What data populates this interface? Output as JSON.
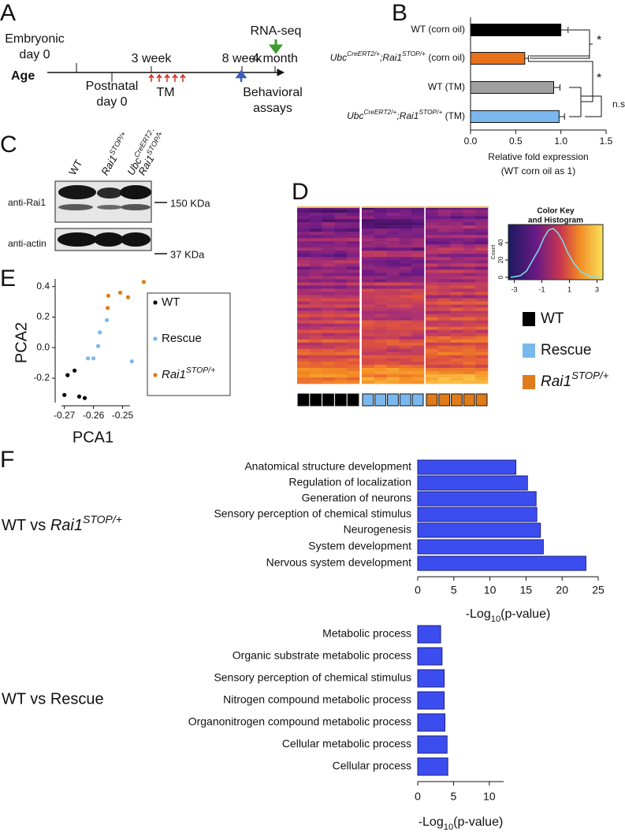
{
  "panel_labels": [
    "A",
    "B",
    "C",
    "D",
    "E",
    "F"
  ],
  "timeline": {
    "axis_label": "Age",
    "events": [
      [
        "Embryonic",
        "day 0"
      ],
      [
        "Postnatal",
        "day 0"
      ],
      [
        "3 week"
      ],
      [
        "8 week"
      ],
      [
        "4 month"
      ]
    ],
    "treatment": "TM",
    "assay": [
      "Behavioral",
      "assays"
    ],
    "sequencing": "RNA-seq"
  },
  "western": {
    "lanes": [
      [
        [
          {
            "text": "WT",
            "style": "normal"
          }
        ]
      ],
      [
        [
          {
            "text": "Rai1",
            "style": "italic"
          },
          {
            "text": "STOP/+",
            "style": "sup"
          }
        ]
      ],
      [
        [
          {
            "text": "Ubc",
            "style": "italic"
          },
          {
            "text": "CreERT2",
            "style": "sup"
          },
          {
            "text": ";",
            "style": "italic"
          }
        ],
        [
          {
            "text": "Rai1",
            "style": "italic"
          },
          {
            "text": "STOP/+",
            "style": "sup"
          }
        ]
      ]
    ],
    "blots": [
      "anti-Rai1",
      "anti-actin"
    ],
    "markers": [
      "150 KDa",
      "37 KDa"
    ]
  },
  "heatmap": {
    "key_title": [
      "Color Key",
      "and Histogram"
    ],
    "key_ticks": [
      -3,
      -1,
      1,
      3
    ],
    "count_label": "Count",
    "count_ticks": [
      0,
      20,
      40
    ],
    "legend": [
      {
        "label": "WT",
        "color": "#000000"
      },
      {
        "label": "Rescue",
        "color": "#7ab8ee"
      },
      {
        "label": [
          {
            "text": "Rai1",
            "style": "italic"
          },
          {
            "text": "STOP/+",
            "style": "sup"
          }
        ],
        "color": "#e07b1a"
      }
    ]
  },
  "chart_data": [
    {
      "type": "bar",
      "orientation": "horizontal",
      "categories": [
        "WT (corn oil)",
        [
          {
            "text": "Ubc",
            "style": "italic"
          },
          {
            "text": "CreERT2/+",
            "style": "sup"
          },
          {
            "text": ";Rai1",
            "style": "italic"
          },
          {
            "text": "STOP/+",
            "style": "sup"
          },
          {
            "text": " (corn oil)",
            "style": "normal"
          }
        ],
        "WT (TM)",
        [
          {
            "text": "Ubc",
            "style": "italic"
          },
          {
            "text": "CreERT2/+",
            "style": "sup"
          },
          {
            "text": ";Rai1",
            "style": "italic"
          },
          {
            "text": "STOP/+",
            "style": "sup"
          },
          {
            "text": " (TM)",
            "style": "normal"
          }
        ]
      ],
      "values": [
        1.0,
        0.6,
        0.92,
        0.98
      ],
      "errors": [
        0.08,
        0.04,
        0.07,
        0.06
      ],
      "colors": [
        "#000000",
        "#e8711c",
        "#a0a0a0",
        "#7ab8ee"
      ],
      "xlim": [
        0,
        1.5
      ],
      "xticks": [
        {
          "value": 0,
          "label": "0.0"
        },
        0.5,
        {
          "value": 1,
          "label": "1.0"
        },
        1.5
      ],
      "xlabel": [
        "Relative fold expression",
        "(WT corn oil as 1)"
      ],
      "annotations": [
        "*",
        "*",
        "n.s."
      ]
    },
    {
      "type": "scatter",
      "xlabel": "PCA1",
      "ylabel": "PCA2",
      "xlim": [
        -0.271,
        -0.242
      ],
      "ylim": [
        -0.36,
        0.45
      ],
      "xticks": [
        -0.27,
        -0.26,
        -0.25
      ],
      "yticks": [
        -0.2,
        {
          "value": 0,
          "label": "0.0"
        },
        0.2,
        0.4
      ],
      "series": [
        {
          "name": "WT",
          "color": "#000000",
          "x": [
            -0.2689,
            -0.2665,
            -0.27,
            -0.2649,
            -0.263
          ],
          "y": [
            -0.18,
            -0.15,
            -0.31,
            -0.32,
            -0.33
          ]
        },
        {
          "name": "Rescue",
          "color": "#7ab8ee",
          "x": [
            -0.2554,
            -0.2578,
            -0.2584,
            -0.26,
            -0.2619,
            -0.2468
          ],
          "y": [
            0.18,
            0.1,
            0.01,
            -0.07,
            -0.07,
            -0.09
          ]
        },
        {
          "name": [
            {
              "text": "Rai1",
              "style": "italic"
            },
            {
              "text": "STOP/+",
              "style": "sup"
            }
          ],
          "color": "#e07b1a",
          "x": [
            -0.2549,
            -0.2508,
            -0.2481,
            -0.2427,
            -0.2551
          ],
          "y": [
            0.34,
            0.36,
            0.33,
            0.43,
            0.26
          ]
        }
      ]
    },
    {
      "type": "bar",
      "orientation": "horizontal",
      "title": [
        {
          "text": "WT vs ",
          "style": "normal"
        },
        {
          "text": "Rai1",
          "style": "italic"
        },
        {
          "text": "STOP/+",
          "style": "sup"
        }
      ],
      "categories": [
        "Anatomical structure development",
        "Regulation of localization",
        "Generation of neurons",
        "Sensory perception of chemical stimulus",
        "Neurogenesis",
        "System development",
        "Nervous system development"
      ],
      "values": [
        13.6,
        15.2,
        16.4,
        16.5,
        17.0,
        17.4,
        23.3
      ],
      "color": "#3c4df0",
      "xlim": [
        0,
        25
      ],
      "xticks": [
        0,
        5,
        10,
        15,
        20,
        25
      ],
      "xlabel": [
        {
          "text": "-Log",
          "style": "normal"
        },
        {
          "text": "10",
          "style": "sub"
        },
        {
          "text": "(p-value)",
          "style": "normal"
        }
      ]
    },
    {
      "type": "bar",
      "orientation": "horizontal",
      "title": "WT vs Rescue",
      "categories": [
        "Metabolic process",
        "Organic substrate metabolic process",
        "Sensory perception of chemical stimulus",
        "Nitrogen compound metabolic process",
        "Organonitrogen compound metabolic process",
        "Cellular metabolic process",
        "Cellular process"
      ],
      "values": [
        3.2,
        3.4,
        3.7,
        3.7,
        3.8,
        4.1,
        4.2
      ],
      "color": "#3c4df0",
      "xlim": [
        0,
        12
      ],
      "xticks": [
        0,
        5,
        10
      ],
      "xlabel": [
        {
          "text": "-Log",
          "style": "normal"
        },
        {
          "text": "10",
          "style": "sub"
        },
        {
          "text": "(p-value)",
          "style": "normal"
        }
      ]
    }
  ]
}
